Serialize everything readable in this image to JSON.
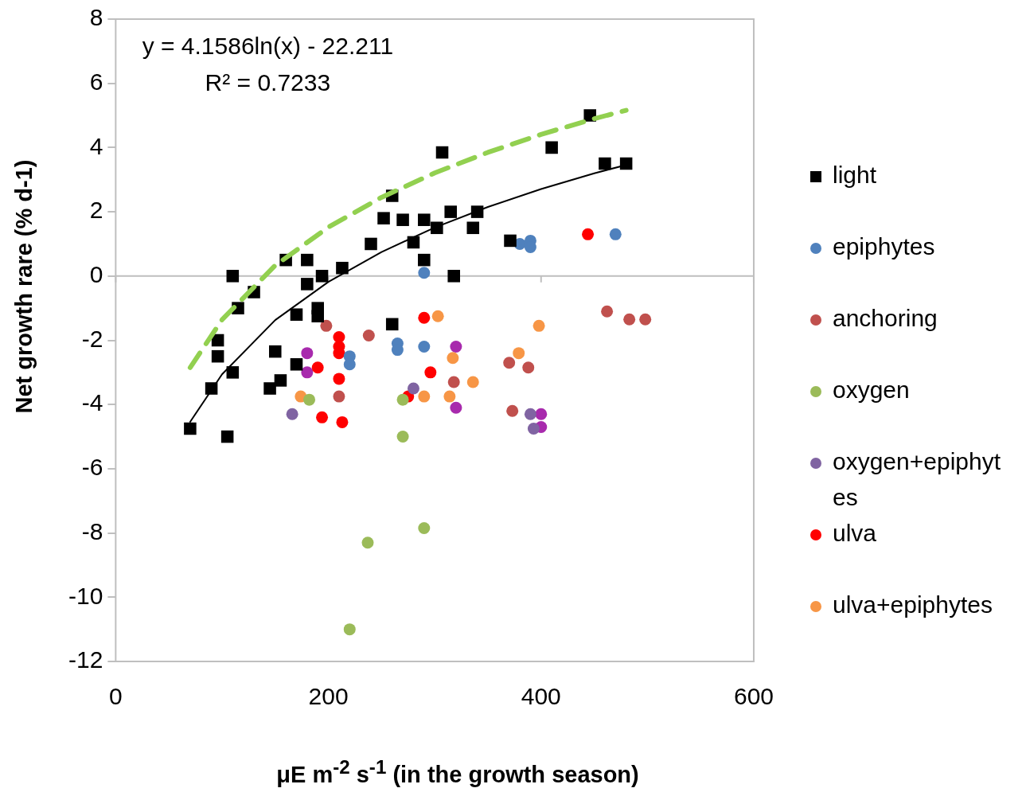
{
  "chart_data": {
    "type": "scatter",
    "xlabel": "μE m$^{-2}$ s$^{-1}$ (in the growth season)",
    "ylabel": "Net growth rare (% d-1)",
    "annotations": [
      "y = 4.1586ln(x) - 22.211",
      "R² = 0.7233"
    ],
    "xlim": [
      0,
      600
    ],
    "xticks": [
      0,
      200,
      400,
      600
    ],
    "ylim": [
      -12,
      8
    ],
    "yticks": [
      -12,
      -10,
      -8,
      -6,
      -4,
      -2,
      0,
      2,
      4,
      6,
      8
    ],
    "grid": false,
    "legend": "right",
    "ref_lines": [
      {
        "axis": "y",
        "value": 0,
        "color": "#bfbfbf"
      }
    ],
    "series": [
      {
        "name": "light",
        "color": "#000000",
        "marker": "square",
        "x": [
          70,
          90,
          96,
          96,
          110,
          110,
          105,
          115,
          130,
          150,
          155,
          160,
          145,
          170,
          170,
          180,
          180,
          190,
          190,
          194,
          213,
          240,
          260,
          260,
          252,
          270,
          280,
          290,
          290,
          302,
          307,
          315,
          318,
          340,
          336,
          371,
          410,
          446,
          460,
          480
        ],
        "values": [
          -4.75,
          -3.5,
          -2.0,
          -2.5,
          0,
          -3.0,
          -5.0,
          -1.0,
          -0.5,
          -2.35,
          -3.25,
          0.5,
          -3.5,
          -1.2,
          -2.75,
          0.5,
          -0.25,
          -1.0,
          -1.25,
          0,
          0.25,
          1.0,
          2.5,
          -1.5,
          1.8,
          1.75,
          1.05,
          1.75,
          0.5,
          1.5,
          3.85,
          2.0,
          0,
          2.0,
          1.5,
          1.1,
          4.0,
          5.0,
          3.5,
          3.5
        ]
      },
      {
        "name": "epiphytes",
        "color": "#4f81bd",
        "marker": "circle",
        "x": [
          290,
          380,
          390,
          390,
          470,
          220,
          220,
          265,
          265,
          290
        ],
        "values": [
          0.1,
          1.0,
          1.1,
          0.9,
          1.3,
          -2.5,
          -2.75,
          -2.1,
          -2.3,
          -2.2
        ]
      },
      {
        "name": "anchoring",
        "color": "#c0504d",
        "marker": "circle",
        "x": [
          198,
          238,
          210,
          318,
          370,
          388,
          373,
          462,
          483,
          498
        ],
        "values": [
          -1.55,
          -1.85,
          -3.75,
          -3.3,
          -2.7,
          -2.85,
          -4.2,
          -1.1,
          -1.35,
          -1.35
        ]
      },
      {
        "name": "oxygen",
        "color": "#9bbb59",
        "marker": "circle",
        "x": [
          182,
          270,
          270,
          237,
          290,
          220
        ],
        "values": [
          -3.85,
          -3.85,
          -5.0,
          -8.3,
          -7.85,
          -11.0
        ]
      },
      {
        "name": "oxygen+epiphytes",
        "color": "#8064a2",
        "marker": "circle",
        "x": [
          166,
          280,
          390,
          393
        ],
        "values": [
          -4.3,
          -3.5,
          -4.3,
          -4.75
        ]
      },
      {
        "name": "ulva",
        "color": "#ff0000",
        "marker": "circle",
        "x": [
          210,
          210,
          210,
          190,
          210,
          194,
          213,
          275,
          296,
          290,
          444
        ],
        "values": [
          -1.9,
          -2.2,
          -2.4,
          -2.85,
          -3.2,
          -4.4,
          -4.55,
          -3.75,
          -3.0,
          -1.3,
          1.3
        ]
      },
      {
        "name": "ulva+epiphytes",
        "color": "#f79646",
        "marker": "circle",
        "x": [
          174,
          303,
          317,
          290,
          314,
          336,
          379,
          398
        ],
        "values": [
          -3.75,
          -1.25,
          -2.55,
          -3.75,
          -3.75,
          -3.3,
          -2.4,
          -1.55
        ]
      },
      {
        "color": "#a82aad",
        "marker": "circle",
        "x": [
          180,
          180,
          320,
          320,
          400,
          400
        ],
        "values": [
          -2.4,
          -3.0,
          -2.2,
          -4.1,
          -4.3,
          -4.7
        ]
      },
      {
        "type": "line",
        "color": "#000000",
        "marker": "none",
        "line_style": "solid",
        "x": [
          70,
          100,
          150,
          200,
          250,
          300,
          350,
          400,
          450,
          480
        ],
        "values": [
          -4.54,
          -3.06,
          -1.37,
          -0.18,
          0.75,
          1.51,
          2.15,
          2.71,
          3.2,
          3.46
        ]
      },
      {
        "type": "line",
        "color": "#92d050",
        "marker": "none",
        "line_style": "dashed",
        "x": [
          70,
          100,
          150,
          200,
          250,
          300,
          350,
          400,
          450,
          480
        ],
        "values": [
          -2.85,
          -1.36,
          0.33,
          1.52,
          2.45,
          3.21,
          3.85,
          4.41,
          4.9,
          5.16
        ]
      }
    ]
  }
}
